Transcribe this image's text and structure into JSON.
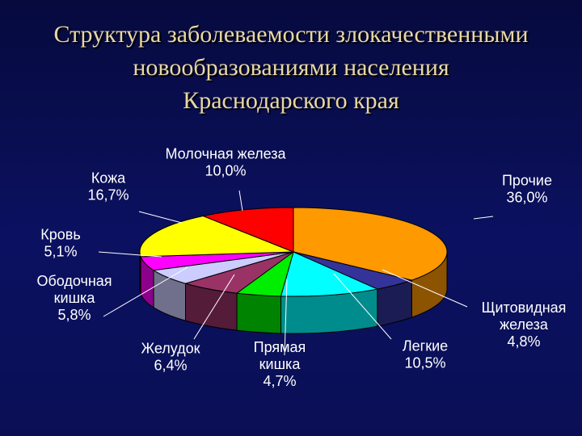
{
  "title_lines": [
    "Структура заболеваемости злокачественными",
    "новообразованиями населения",
    "Краснодарского края"
  ],
  "chart_data": {
    "type": "pie",
    "title": "Структура заболеваемости злокачественными новообразованиями населения Краснодарского края",
    "slices": [
      {
        "label_lines": [
          "Прочие",
          "36,0%"
        ],
        "value": 36.0,
        "color": "#ff9900"
      },
      {
        "label_lines": [
          "Щитовидная",
          "железа",
          "4,8%"
        ],
        "value": 4.8,
        "color": "#333399"
      },
      {
        "label_lines": [
          "Легкие",
          "10,5%"
        ],
        "value": 10.5,
        "color": "#00ffff"
      },
      {
        "label_lines": [
          "Прямая",
          "кишка",
          "4,7%"
        ],
        "value": 4.7,
        "color": "#00ee00"
      },
      {
        "label_lines": [
          "Желудок",
          "6,4%"
        ],
        "value": 6.4,
        "color": "#993366"
      },
      {
        "label_lines": [
          "Ободочная",
          "кишка",
          "5,8%"
        ],
        "value": 5.8,
        "color": "#ccccff"
      },
      {
        "label_lines": [
          "Кровь",
          "5,1%"
        ],
        "value": 5.1,
        "color": "#ff00ff"
      },
      {
        "label_lines": [
          "Кожа",
          "16,7%"
        ],
        "value": 16.7,
        "color": "#ffff00"
      },
      {
        "label_lines": [
          "Молочная железа",
          "10,0%"
        ],
        "value": 10.0,
        "color": "#ff0000"
      }
    ]
  }
}
